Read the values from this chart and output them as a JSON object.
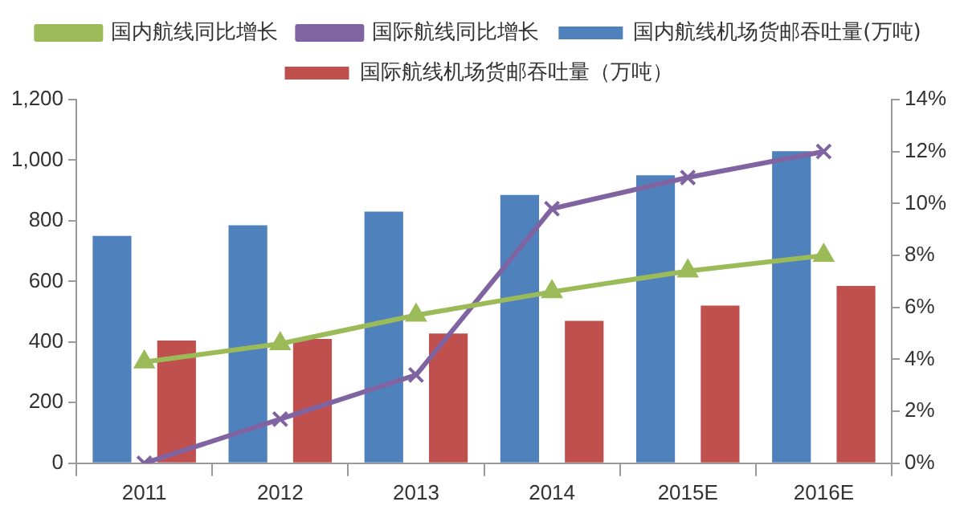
{
  "chart_data": {
    "type": "bar",
    "categories": [
      "2011",
      "2012",
      "2013",
      "2014",
      "2015E",
      "2016E"
    ],
    "series": [
      {
        "name": "国内航线机场货邮吞吐量(万吨)",
        "color": "#4f81bd",
        "values": [
          750,
          785,
          830,
          885,
          950,
          1030
        ]
      },
      {
        "name": "国际航线机场货邮吞吐量（万吨）",
        "color": "#c0504d",
        "values": [
          405,
          410,
          428,
          470,
          520,
          585
        ]
      },
      {
        "name": "国内航线同比增长",
        "type": "line",
        "axis": "y2",
        "color": "#9bbb59",
        "marker": "triangle",
        "values": [
          3.9,
          4.6,
          5.7,
          6.6,
          7.4,
          8.0
        ]
      },
      {
        "name": "国际航线同比增长",
        "type": "line",
        "axis": "y2",
        "color": "#8064a2",
        "marker": "cross",
        "values": [
          0,
          1.7,
          3.4,
          9.8,
          11.0,
          12.0
        ]
      }
    ],
    "ylim": [
      0,
      1200
    ],
    "yticks": [
      0,
      200,
      400,
      600,
      800,
      {
        "value": 1000,
        "label": "1,000"
      },
      {
        "value": 1200,
        "label": "1,200"
      }
    ],
    "y2lim": [
      0,
      14
    ],
    "y2ticks": [
      {
        "value": 0,
        "label": "0%"
      },
      {
        "value": 2,
        "label": "2%"
      },
      {
        "value": 4,
        "label": "4%"
      },
      {
        "value": 6,
        "label": "6%"
      },
      {
        "value": 8,
        "label": "8%"
      },
      {
        "value": 10,
        "label": "10%"
      },
      {
        "value": 12,
        "label": "12%"
      },
      {
        "value": 14,
        "label": "14%"
      }
    ],
    "grid": false,
    "legend": "top"
  }
}
